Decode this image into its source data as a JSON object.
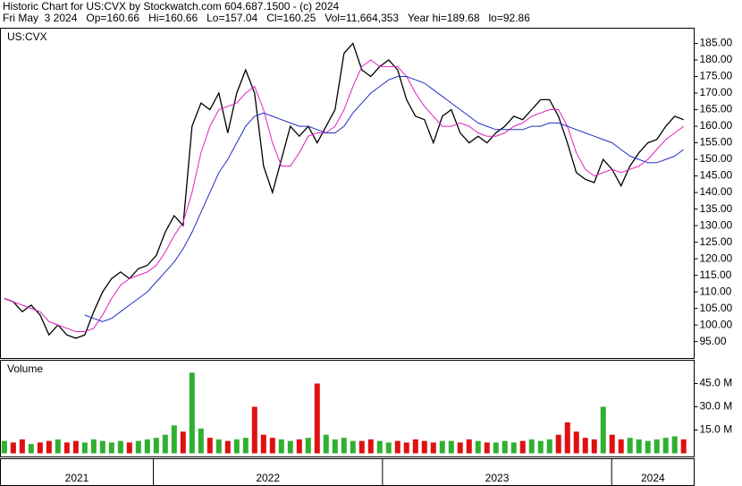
{
  "chart_data": {
    "type": "line",
    "title": "Historic Chart for US:CVX by Stockwatch.com 604.687.1500 - (c) 2024",
    "subtitle": "Fri May  3 2024   Op=160.66   Hi=160.66   Lo=157.04   Cl=160.25   Vol=11,664,353   Year hi=189.68   lo=92.86",
    "symbol": "US:CVX",
    "volume_label": "Volume",
    "x": [
      2021.35,
      2021.389,
      2021.428,
      2021.467,
      2021.506,
      2021.545,
      2021.584,
      2021.623,
      2021.662,
      2021.701,
      2021.74,
      2021.779,
      2021.818,
      2021.857,
      2021.896,
      2021.935,
      2021.974,
      2022.013,
      2022.052,
      2022.091,
      2022.13,
      2022.169,
      2022.208,
      2022.247,
      2022.286,
      2022.325,
      2022.364,
      2022.403,
      2022.442,
      2022.481,
      2022.52,
      2022.559,
      2022.598,
      2022.637,
      2022.676,
      2022.715,
      2022.754,
      2022.793,
      2022.832,
      2022.871,
      2022.91,
      2022.949,
      2022.988,
      2023.027,
      2023.066,
      2023.105,
      2023.144,
      2023.183,
      2023.222,
      2023.261,
      2023.3,
      2023.339,
      2023.378,
      2023.417,
      2023.456,
      2023.495,
      2023.534,
      2023.573,
      2023.612,
      2023.651,
      2023.69,
      2023.729,
      2023.768,
      2023.807,
      2023.846,
      2023.885,
      2023.924,
      2023.963,
      2024.002,
      2024.041,
      2024.08,
      2024.119,
      2024.158,
      2024.197,
      2024.236,
      2024.275,
      2024.314
    ],
    "series": [
      {
        "color": "#000000",
        "values": [
          108,
          107,
          104,
          106,
          103,
          97,
          100,
          97,
          96,
          97,
          104,
          110,
          114,
          116,
          114,
          117,
          118,
          121,
          128,
          133,
          130,
          160,
          167,
          165,
          170,
          158,
          170,
          177,
          170,
          148,
          140,
          150,
          160,
          157,
          160,
          155,
          160,
          165,
          182,
          185,
          177,
          175,
          178,
          180,
          177,
          168,
          163,
          162,
          155,
          163,
          165,
          158,
          155,
          157,
          155,
          158,
          160,
          163,
          162,
          165,
          168,
          168,
          163,
          155,
          146,
          144,
          143,
          150,
          147,
          142,
          148,
          152,
          155,
          156,
          160,
          163,
          162
        ]
      },
      {
        "color": "#e020c0",
        "values": [
          108,
          107,
          106,
          105,
          104,
          101,
          100,
          99,
          98,
          98,
          99,
          103,
          108,
          112,
          114,
          115,
          116,
          118,
          122,
          127,
          131,
          140,
          152,
          160,
          165,
          166,
          167,
          170,
          172,
          165,
          155,
          148,
          148,
          152,
          157,
          158,
          158,
          160,
          165,
          172,
          178,
          180,
          178,
          178,
          178,
          175,
          170,
          166,
          163,
          160,
          160,
          161,
          160,
          158,
          157,
          157,
          158,
          160,
          161,
          163,
          164,
          165,
          165,
          160,
          152,
          147,
          145,
          146,
          147,
          146,
          147,
          148,
          150,
          153,
          156,
          158,
          160
        ]
      },
      {
        "color": "#2030c0",
        "values": [
          null,
          null,
          null,
          null,
          null,
          null,
          null,
          null,
          null,
          103,
          102,
          101,
          102,
          104,
          106,
          108,
          110,
          113,
          116,
          119,
          123,
          128,
          134,
          140,
          146,
          150,
          155,
          160,
          163,
          164,
          163,
          162,
          161,
          160,
          160,
          159,
          158,
          158,
          160,
          164,
          167,
          170,
          172,
          174,
          175,
          175,
          174,
          173,
          171,
          169,
          167,
          165,
          163,
          161,
          160,
          159,
          159,
          159,
          159,
          160,
          160,
          161,
          161,
          160,
          159,
          158,
          157,
          156,
          155,
          153,
          151,
          150,
          149,
          149,
          150,
          151,
          153
        ]
      }
    ],
    "xlim": [
      2021.333,
      2024.36
    ],
    "xticks": [
      2022,
      2023,
      2024
    ],
    "x_labels": [
      "2021",
      "2022",
      "2023",
      "2024"
    ],
    "ylim": [
      89.9,
      189.6
    ],
    "yticks": [
      {
        "value": 95,
        "label": "95.00"
      },
      {
        "value": 100,
        "label": "100.00"
      },
      {
        "value": 105,
        "label": "105.00"
      },
      {
        "value": 110,
        "label": "110.00"
      },
      {
        "value": 115,
        "label": "115.00"
      },
      {
        "value": 120,
        "label": "120.00"
      },
      {
        "value": 125,
        "label": "125.00"
      },
      {
        "value": 130,
        "label": "130.00"
      },
      {
        "value": 135,
        "label": "135.00"
      },
      {
        "value": 140,
        "label": "140.00"
      },
      {
        "value": 145,
        "label": "145.00"
      },
      {
        "value": 150,
        "label": "150.00"
      },
      {
        "value": 155,
        "label": "155.00"
      },
      {
        "value": 160,
        "label": "160.00"
      },
      {
        "value": 165,
        "label": "165.00"
      },
      {
        "value": 170,
        "label": "170.00"
      },
      {
        "value": 175,
        "label": "175.00"
      },
      {
        "value": 180,
        "label": "180.00"
      },
      {
        "value": 185,
        "label": "185.00"
      }
    ],
    "volume": {
      "values": [
        8,
        7,
        9,
        6,
        7,
        8,
        9,
        7,
        8,
        7,
        9,
        8,
        7,
        8,
        7,
        8,
        9,
        10,
        12,
        18,
        14,
        52,
        16,
        10,
        9,
        8,
        9,
        10,
        30,
        12,
        10,
        9,
        8,
        9,
        10,
        45,
        12,
        9,
        10,
        8,
        8,
        9,
        8,
        7,
        8,
        7,
        9,
        8,
        7,
        8,
        8,
        7,
        9,
        8,
        7,
        7,
        8,
        7,
        8,
        9,
        8,
        9,
        12,
        20,
        14,
        10,
        9,
        30,
        12,
        9,
        10,
        9,
        8,
        9,
        10,
        11,
        9
      ],
      "up_color": "#30b030",
      "down_color": "#e01010",
      "ylim": [
        -2.3,
        60
      ],
      "yticks": [
        {
          "value": 15,
          "label": "15.0 M"
        },
        {
          "value": 30,
          "label": "30.0 M"
        },
        {
          "value": 45,
          "label": "45.0 M"
        }
      ]
    }
  }
}
